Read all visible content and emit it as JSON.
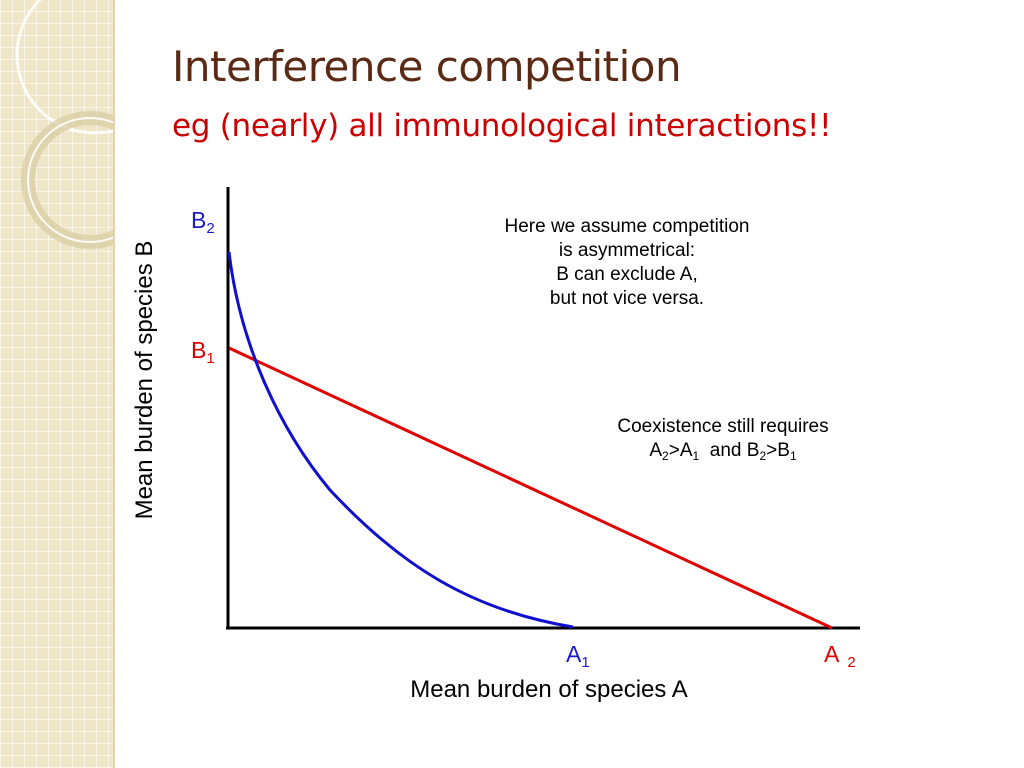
{
  "slide": {
    "title": "Interference competition",
    "subtitle": "eg (nearly) all immunological interactions!!"
  },
  "diagram": {
    "y_axis_label": "Mean burden of species B",
    "x_axis_label": "Mean burden of species A",
    "labels": {
      "B2": {
        "main": "B",
        "sub": "2"
      },
      "B1": {
        "main": "B",
        "sub": "1"
      },
      "A1": {
        "main": "A",
        "sub": "1"
      },
      "A2": {
        "main": "A",
        "sub": "2"
      }
    },
    "note_asymmetry": [
      "Here we assume competition",
      "is asymmetrical:",
      "B can exclude A,",
      "but not vice versa."
    ],
    "note_coexistence": {
      "line1": "Coexistence still requires",
      "line2": {
        "a_main": "A",
        "a_sub": "2",
        "gt1": ">",
        "a2_main": "A",
        "a2_sub": "1",
        "and": "and",
        "b_main": "B",
        "b_sub": "2",
        "gt2": ">",
        "b2_main": "B",
        "b2_sub": "1"
      }
    },
    "colors": {
      "red_isocline": "#e00000",
      "blue_isocline": "#1010cc",
      "axes": "#000000",
      "title": "#5a2a14",
      "subtitle": "#cc0000"
    }
  }
}
